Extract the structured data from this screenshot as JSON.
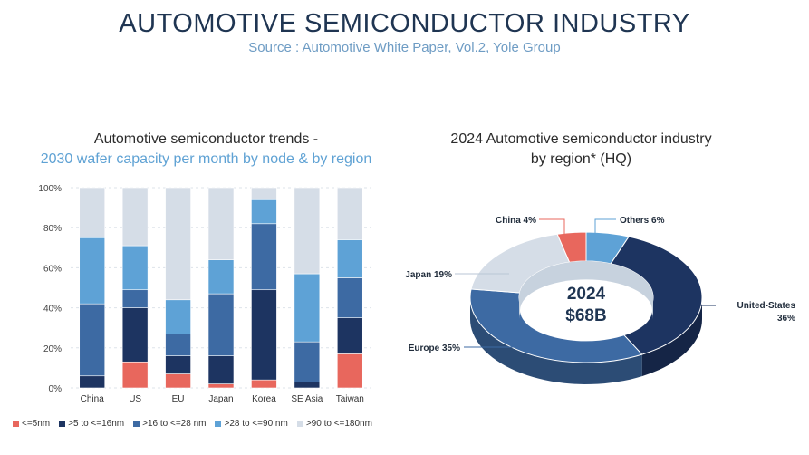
{
  "header": {
    "title": "AUTOMOTIVE SEMICONDUCTOR INDUSTRY",
    "source": "Source : Automotive White Paper, Vol.2, Yole Group"
  },
  "chart_data": [
    {
      "type": "bar",
      "stacked": true,
      "title_line1": "Automotive semiconductor trends -",
      "title_line2": "2030 wafer capacity per month by node & by region",
      "categories": [
        "China",
        "US",
        "EU",
        "Japan",
        "Korea",
        "SE Asia",
        "Taiwan"
      ],
      "y_ticks": [
        "0%",
        "20%",
        "40%",
        "60%",
        "80%",
        "100%"
      ],
      "ylim": [
        0,
        100
      ],
      "series": [
        {
          "name": "<=5nm",
          "color": "#e8675d",
          "values": [
            0,
            13,
            7,
            2,
            4,
            0,
            17
          ]
        },
        {
          "name": ">5 to <=16nm",
          "color": "#1d3461",
          "values": [
            6,
            27,
            9,
            14,
            45,
            3,
            18
          ]
        },
        {
          "name": ">16 to <=28 nm",
          "color": "#3d6aa3",
          "values": [
            36,
            9,
            11,
            31,
            33,
            20,
            20
          ]
        },
        {
          "name": ">28 to <=90 nm",
          "color": "#5ea2d6",
          "values": [
            33,
            22,
            17,
            17,
            12,
            34,
            19
          ]
        },
        {
          "name": ">90 to <=180nm",
          "color": "#d5dde7",
          "values": [
            25,
            29,
            56,
            36,
            6,
            43,
            26
          ]
        }
      ]
    },
    {
      "type": "pie",
      "donut": true,
      "title_line1": "2024 Automotive semiconductor industry",
      "title_line2": "by region* (HQ)",
      "center_year": "2024",
      "center_value": "$68B",
      "slices": [
        {
          "name": "Others",
          "label": "Others 6%",
          "value": 6,
          "color": "#5ea2d6"
        },
        {
          "name": "United-States",
          "label_line1": "United-States",
          "label_line2": "36%",
          "value": 36,
          "color": "#1d3461"
        },
        {
          "name": "Europe",
          "label": "Europe 35%",
          "value": 35,
          "color": "#3d6aa3"
        },
        {
          "name": "Japan",
          "label": "Japan 19%",
          "value": 19,
          "color": "#d5dde7"
        },
        {
          "name": "China",
          "label": "China 4%",
          "value": 4,
          "color": "#e8675d"
        }
      ]
    }
  ]
}
